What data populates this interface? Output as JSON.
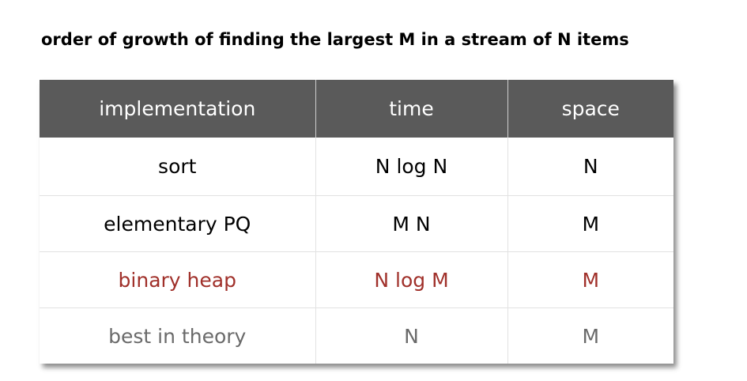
{
  "title": "order of growth of finding the largest M in a stream of N items",
  "table": {
    "headers": [
      "implementation",
      "time",
      "space"
    ],
    "rows": [
      {
        "cells": [
          "sort",
          "N log N",
          "N"
        ],
        "color": "#000000"
      },
      {
        "cells": [
          "elementary PQ",
          "M N",
          "M"
        ],
        "color": "#000000"
      },
      {
        "cells": [
          "binary heap",
          "N log M",
          "M"
        ],
        "color": "#a0302a"
      },
      {
        "cells": [
          "best in theory",
          "N",
          "M"
        ],
        "color": "#6a6a6a"
      }
    ]
  }
}
